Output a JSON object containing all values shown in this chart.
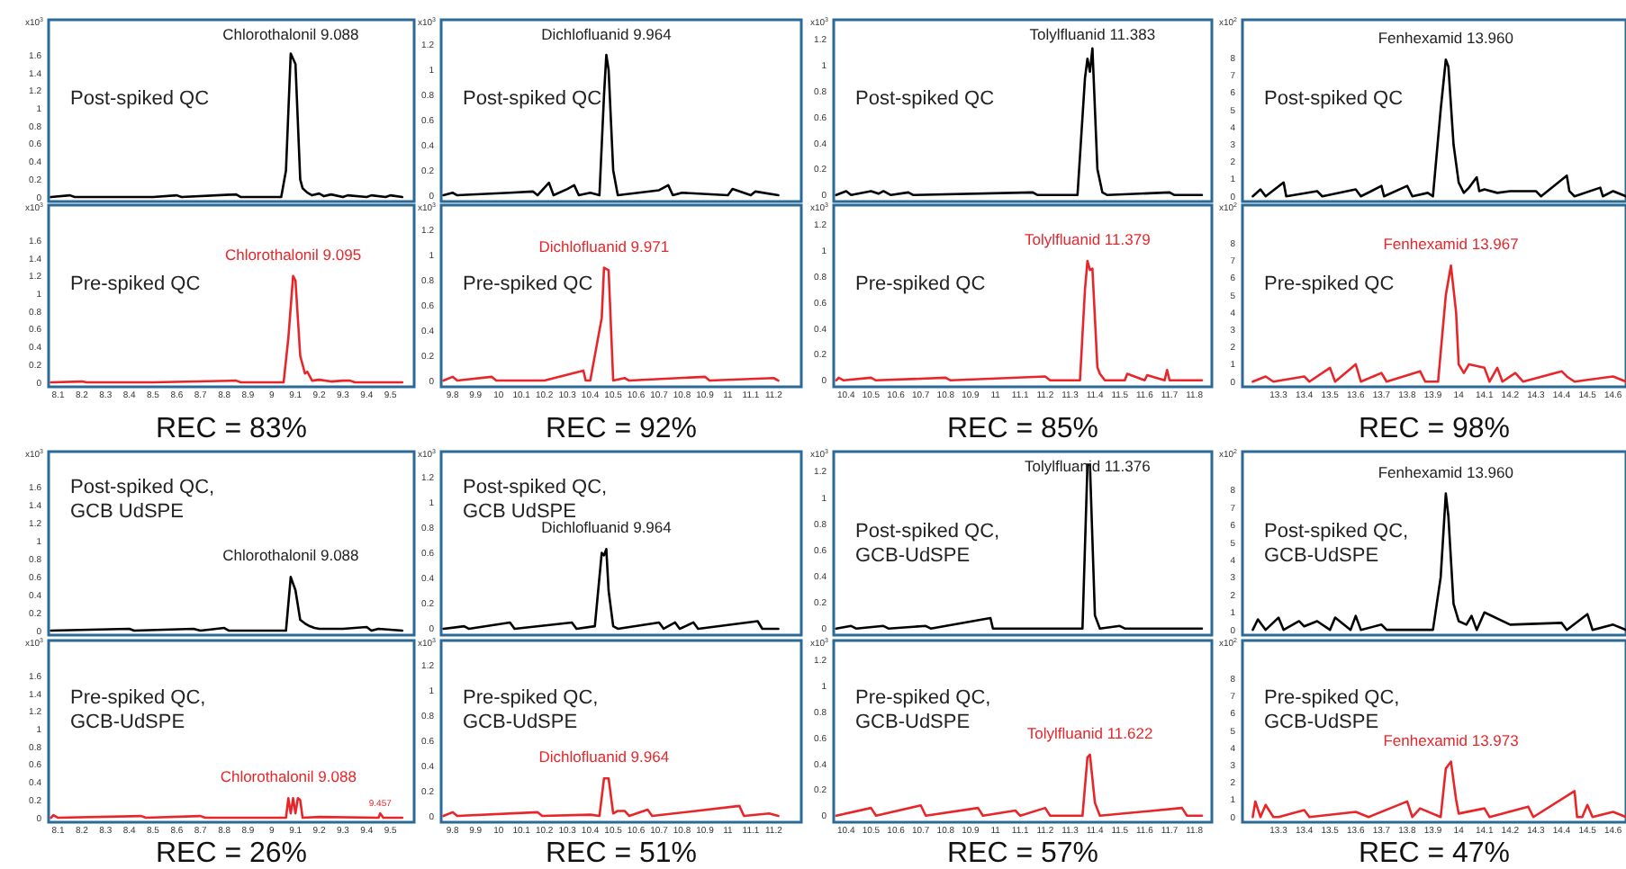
{
  "chart_data": [
    {
      "type": "line",
      "ylabel": "x10$^{3}$",
      "xlim": [
        8.06,
        9.6
      ],
      "xticks": [
        8.1,
        8.2,
        8.3,
        8.4,
        8.5,
        8.6,
        8.7,
        8.8,
        8.9,
        9,
        9.1,
        9.2,
        9.3,
        9.4,
        9.5
      ],
      "ylim": [
        -0.05,
        2.0
      ],
      "yticks": [
        0,
        0.2,
        0.4,
        0.6,
        0.8,
        1,
        1.2,
        1.4,
        1.6
      ],
      "tick_labels": "y",
      "series": [
        {
          "color": "#000000",
          "x": [
            8.07,
            8.15,
            8.17,
            8.5,
            8.6,
            8.62,
            8.85,
            8.87,
            9.04,
            9.06,
            9.08,
            9.1,
            9.12,
            9.13,
            9.15,
            9.17,
            9.2,
            9.22,
            9.25,
            9.3,
            9.32,
            9.4,
            9.42,
            9.48,
            9.5,
            9.55
          ],
          "values": [
            0,
            0.02,
            0,
            0,
            0.02,
            0,
            0.03,
            0,
            0,
            0.3,
            1.62,
            1.5,
            0.2,
            0.1,
            0.05,
            0.02,
            0.04,
            0.01,
            0.03,
            0,
            0.02,
            0,
            0.02,
            0,
            0.02,
            0
          ]
        }
      ],
      "annotations": [
        "Post-spiked QC",
        "Chlorothalonil 9.088"
      ]
    },
    {
      "type": "line",
      "ylabel": "x10$^{3}$",
      "xlim": [
        9.75,
        11.32
      ],
      "xticks": [
        9.8,
        9.9,
        10,
        10.1,
        10.2,
        10.3,
        10.4,
        10.5,
        10.6,
        10.7,
        10.8,
        10.9,
        11,
        11.1,
        11.2
      ],
      "ylim": [
        -0.05,
        1.4
      ],
      "yticks": [
        0,
        0.2,
        0.4,
        0.6,
        0.8,
        1,
        1.2
      ],
      "tick_labels": "y",
      "series": [
        {
          "color": "#000000",
          "x": [
            9.76,
            9.8,
            9.82,
            10.05,
            10.15,
            10.17,
            10.22,
            10.24,
            10.3,
            10.33,
            10.35,
            10.4,
            10.44,
            10.46,
            10.47,
            10.48,
            10.5,
            10.52,
            10.7,
            10.74,
            10.76,
            10.8,
            11.0,
            11.02,
            11.1,
            11.12,
            11.22
          ],
          "values": [
            0,
            0.02,
            0,
            0.02,
            0.03,
            0,
            0.1,
            0,
            0.05,
            0.08,
            0,
            0.02,
            0,
            0.8,
            1.12,
            1.0,
            0.2,
            0,
            0.04,
            0.08,
            0,
            0.02,
            0,
            0.05,
            0,
            0.03,
            0
          ]
        }
      ],
      "annotations": [
        "Post-spiked QC",
        "Dichlofluanid 9.964"
      ]
    },
    {
      "type": "line",
      "ylabel": "x10$^{3}$",
      "xlim": [
        10.35,
        11.87
      ],
      "xticks": [
        10.4,
        10.5,
        10.6,
        10.7,
        10.8,
        10.9,
        11,
        11.1,
        11.2,
        11.3,
        11.4,
        11.5,
        11.6,
        11.7,
        11.8
      ],
      "ylim": [
        -0.05,
        1.35
      ],
      "yticks": [
        0,
        0.2,
        0.4,
        0.6,
        0.8,
        1,
        1.2
      ],
      "tick_labels": "y",
      "series": [
        {
          "color": "#000000",
          "x": [
            10.36,
            10.4,
            10.42,
            10.5,
            10.53,
            10.55,
            10.58,
            10.65,
            10.67,
            11.15,
            11.17,
            11.33,
            11.36,
            11.37,
            11.38,
            11.39,
            11.41,
            11.43,
            11.45,
            11.7,
            11.72,
            11.83
          ],
          "values": [
            0,
            0.03,
            0,
            0.03,
            0.01,
            0.03,
            0,
            0.02,
            0,
            0.02,
            0,
            0,
            0.9,
            1.05,
            0.95,
            1.13,
            0.2,
            0.02,
            0,
            0.02,
            0,
            0
          ]
        }
      ],
      "annotations": [
        "Post-spiked QC",
        "Tolylfluanid 11.383"
      ]
    },
    {
      "type": "line",
      "ylabel": "x10$^{2}$",
      "xlim": [
        13.16,
        14.65
      ],
      "xticks": [
        13.3,
        13.4,
        13.5,
        13.6,
        13.7,
        13.8,
        13.9,
        14,
        14.1,
        14.2,
        14.3,
        14.4,
        14.5,
        14.6
      ],
      "ylim": [
        -0.3,
        10.2
      ],
      "yticks": [
        0,
        1,
        2,
        3,
        4,
        5,
        6,
        7,
        8
      ],
      "tick_labels": "y",
      "series": [
        {
          "color": "#000000",
          "x": [
            13.2,
            13.23,
            13.25,
            13.32,
            13.33,
            13.45,
            13.47,
            13.6,
            13.62,
            13.7,
            13.71,
            13.8,
            13.82,
            13.88,
            13.9,
            13.93,
            13.95,
            13.96,
            13.98,
            14.0,
            14.02,
            14.04,
            14.07,
            14.08,
            14.1,
            14.15,
            14.2,
            14.3,
            14.32,
            14.42,
            14.43,
            14.45,
            14.55,
            14.56,
            14.6,
            14.65
          ],
          "values": [
            0,
            0.4,
            0,
            0.8,
            0,
            0.3,
            0,
            0.4,
            0,
            0.6,
            0,
            0.6,
            0,
            0.2,
            0,
            5,
            7.9,
            7.5,
            3,
            0.8,
            0.2,
            0.5,
            1.1,
            0.3,
            0.4,
            0.2,
            0.3,
            0.3,
            0,
            1.2,
            0.3,
            0,
            0.5,
            0,
            0.3,
            0
          ]
        }
      ],
      "annotations": [
        "Post-spiked QC",
        "Fenhexamid 13.960"
      ]
    },
    {
      "type": "line",
      "ylabel": "x10$^{3}$",
      "xlim": [
        8.06,
        9.6
      ],
      "xticks": [
        8.1,
        8.2,
        8.3,
        8.4,
        8.5,
        8.6,
        8.7,
        8.8,
        8.9,
        9,
        9.1,
        9.2,
        9.3,
        9.4,
        9.5
      ],
      "ylim": [
        -0.05,
        2.0
      ],
      "yticks": [
        0,
        0.2,
        0.4,
        0.6,
        0.8,
        1,
        1.2,
        1.4,
        1.6
      ],
      "series": [
        {
          "color": "#e8262a",
          "x": [
            8.07,
            8.2,
            8.22,
            8.5,
            8.85,
            8.87,
            9.05,
            9.07,
            9.09,
            9.1,
            9.12,
            9.14,
            9.15,
            9.17,
            9.2,
            9.25,
            9.3,
            9.33,
            9.35,
            9.55
          ],
          "values": [
            0,
            0.01,
            0,
            0,
            0.02,
            0,
            0,
            0.5,
            1.2,
            1.15,
            0.3,
            0.1,
            0.12,
            0.02,
            0.03,
            0.01,
            0.02,
            0.02,
            0,
            0
          ]
        }
      ],
      "annotations": [
        "Pre-spiked QC",
        "REC = 83%",
        "Chlorothalonil 9.095"
      ]
    },
    {
      "type": "line",
      "ylabel": "x10$^{3}$",
      "xlim": [
        9.75,
        11.32
      ],
      "xticks": [
        9.8,
        9.9,
        10,
        10.1,
        10.2,
        10.3,
        10.4,
        10.5,
        10.6,
        10.7,
        10.8,
        10.9,
        11,
        11.1,
        11.2
      ],
      "ylim": [
        -0.05,
        1.4
      ],
      "yticks": [
        0,
        0.2,
        0.4,
        0.6,
        0.8,
        1,
        1.2
      ],
      "series": [
        {
          "color": "#e8262a",
          "x": [
            9.76,
            9.8,
            9.82,
            9.97,
            9.99,
            10.2,
            10.37,
            10.38,
            10.4,
            10.45,
            10.46,
            10.48,
            10.5,
            10.55,
            10.57,
            10.9,
            10.92,
            11.2,
            11.22
          ],
          "values": [
            0,
            0.03,
            0,
            0.03,
            0,
            0,
            0.08,
            0,
            0,
            0.5,
            0.9,
            0.88,
            0,
            0.02,
            0,
            0.03,
            0,
            0.02,
            0
          ]
        }
      ],
      "annotations": [
        "Pre-spiked QC",
        "REC = 92%",
        "Dichlofluanid 9.971"
      ]
    },
    {
      "type": "line",
      "ylabel": "x10$^{3}$",
      "xlim": [
        10.35,
        11.87
      ],
      "xticks": [
        10.4,
        10.5,
        10.6,
        10.7,
        10.8,
        10.9,
        11,
        11.1,
        11.2,
        11.3,
        11.4,
        11.5,
        11.6,
        11.7,
        11.8
      ],
      "ylim": [
        -0.05,
        1.35
      ],
      "yticks": [
        0,
        0.2,
        0.4,
        0.6,
        0.8,
        1,
        1.2
      ],
      "series": [
        {
          "color": "#e8262a",
          "x": [
            10.36,
            10.37,
            10.39,
            10.5,
            10.52,
            10.8,
            10.82,
            11.2,
            11.22,
            11.34,
            11.36,
            11.37,
            11.38,
            11.39,
            11.41,
            11.42,
            11.44,
            11.52,
            11.53,
            11.6,
            11.61,
            11.68,
            11.69,
            11.7,
            11.83
          ],
          "values": [
            0,
            0.02,
            0,
            0.02,
            0,
            0.02,
            0,
            0.03,
            0,
            0,
            0.7,
            0.92,
            0.85,
            0.86,
            0.1,
            0.05,
            0,
            0,
            0.05,
            0,
            0.04,
            0,
            0.08,
            0,
            0
          ]
        }
      ],
      "annotations": [
        "Pre-spiked QC",
        "REC = 85%",
        "Tolylfluanid 11.379"
      ]
    },
    {
      "type": "line",
      "ylabel": "x10$^{2}$",
      "xlim": [
        13.16,
        14.65
      ],
      "xticks": [
        13.3,
        13.4,
        13.5,
        13.6,
        13.7,
        13.8,
        13.9,
        14,
        14.1,
        14.2,
        14.3,
        14.4,
        14.5,
        14.6
      ],
      "ylim": [
        -0.3,
        10.2
      ],
      "yticks": [
        0,
        1,
        2,
        3,
        4,
        5,
        6,
        7,
        8
      ],
      "series": [
        {
          "color": "#e8262a",
          "x": [
            13.2,
            13.25,
            13.28,
            13.4,
            13.42,
            13.5,
            13.52,
            13.6,
            13.62,
            13.7,
            13.72,
            13.85,
            13.87,
            13.92,
            13.95,
            13.97,
            13.99,
            14.0,
            14.02,
            14.04,
            14.1,
            14.12,
            14.15,
            14.17,
            14.22,
            14.25,
            14.4,
            14.42,
            14.45,
            14.6,
            14.65
          ],
          "values": [
            0,
            0.3,
            0,
            0.3,
            0,
            0.8,
            0,
            1.0,
            0,
            0.5,
            0,
            0.6,
            0,
            0,
            5,
            6.7,
            4,
            1.0,
            0.5,
            1.0,
            0.8,
            0,
            0.8,
            0,
            0.5,
            0,
            0.6,
            0.3,
            0,
            0.3,
            0
          ]
        }
      ],
      "annotations": [
        "Pre-spiked QC",
        "REC = 98%",
        "Fenhexamid 13.967"
      ]
    },
    {
      "type": "line",
      "ylabel": "x10$^{3}$",
      "xlim": [
        8.06,
        9.6
      ],
      "xticks": [
        8.1,
        8.2,
        8.3,
        8.4,
        8.5,
        8.6,
        8.7,
        8.8,
        8.9,
        9,
        9.1,
        9.2,
        9.3,
        9.4,
        9.5
      ],
      "ylim": [
        -0.05,
        2.0
      ],
      "yticks": [
        0,
        0.2,
        0.4,
        0.6,
        0.8,
        1,
        1.2,
        1.4,
        1.6
      ],
      "tick_labels": "y",
      "series": [
        {
          "color": "#000000",
          "x": [
            8.07,
            8.4,
            8.42,
            8.67,
            8.7,
            8.8,
            8.82,
            9.06,
            9.08,
            9.1,
            9.12,
            9.14,
            9.16,
            9.18,
            9.2,
            9.25,
            9.3,
            9.4,
            9.42,
            9.45,
            9.55
          ],
          "values": [
            0,
            0.02,
            0,
            0.02,
            0,
            0.03,
            0,
            0,
            0.6,
            0.45,
            0.12,
            0.08,
            0.05,
            0.03,
            0.02,
            0.02,
            0.02,
            0.04,
            0,
            0.02,
            0
          ]
        }
      ],
      "annotations": [
        "Post-spiked QC,\nGCB UdSPE",
        "Chlorothalonil 9.088"
      ]
    },
    {
      "type": "line",
      "ylabel": "x10$^{3}$",
      "xlim": [
        9.75,
        11.32
      ],
      "xticks": [
        9.8,
        9.9,
        10,
        10.1,
        10.2,
        10.3,
        10.4,
        10.5,
        10.6,
        10.7,
        10.8,
        10.9,
        11,
        11.1,
        11.2
      ],
      "ylim": [
        -0.05,
        1.4
      ],
      "yticks": [
        0,
        0.2,
        0.4,
        0.6,
        0.8,
        1,
        1.2
      ],
      "tick_labels": "y",
      "series": [
        {
          "color": "#000000",
          "x": [
            9.76,
            9.85,
            9.87,
            10.05,
            10.07,
            10.32,
            10.34,
            10.42,
            10.45,
            10.46,
            10.47,
            10.48,
            10.5,
            10.52,
            10.7,
            10.72,
            10.77,
            10.79,
            10.85,
            10.87,
            11.13,
            11.15,
            11.22
          ],
          "values": [
            0,
            0.02,
            0,
            0.05,
            0,
            0.05,
            0,
            0.02,
            0.6,
            0.58,
            0.63,
            0.3,
            0.02,
            0,
            0.05,
            0,
            0.05,
            0,
            0.05,
            0,
            0.06,
            0,
            0
          ]
        }
      ],
      "annotations": [
        "Post-spiked QC,\nGCB UdSPE",
        "Dichlofluanid 9.964"
      ]
    },
    {
      "type": "line",
      "ylabel": "x10$^{3}$",
      "xlim": [
        10.35,
        11.87
      ],
      "xticks": [
        10.4,
        10.5,
        10.6,
        10.7,
        10.8,
        10.9,
        11,
        11.1,
        11.2,
        11.3,
        11.4,
        11.5,
        11.6,
        11.7,
        11.8
      ],
      "ylim": [
        -0.05,
        1.35
      ],
      "yticks": [
        0,
        0.2,
        0.4,
        0.6,
        0.8,
        1,
        1.2
      ],
      "tick_labels": "y",
      "series": [
        {
          "color": "#000000",
          "x": [
            10.36,
            10.42,
            10.44,
            10.55,
            10.57,
            10.72,
            10.74,
            10.98,
            10.99,
            11.01,
            11.35,
            11.37,
            11.38,
            11.4,
            11.42,
            11.5,
            11.52,
            11.83
          ],
          "values": [
            0,
            0.02,
            0,
            0.02,
            0,
            0.02,
            0,
            0.08,
            0,
            0,
            0,
            1.25,
            1.25,
            0.1,
            0,
            0.02,
            0,
            0
          ]
        }
      ],
      "annotations": [
        "Post-spiked QC,\nGCB-UdSPE",
        "Tolylfluanid 11.376"
      ]
    },
    {
      "type": "line",
      "ylabel": "x10$^{2}$",
      "xlim": [
        13.16,
        14.65
      ],
      "xticks": [
        13.3,
        13.4,
        13.5,
        13.6,
        13.7,
        13.8,
        13.9,
        14,
        14.1,
        14.2,
        14.3,
        14.4,
        14.5,
        14.6
      ],
      "ylim": [
        -0.3,
        10.2
      ],
      "yticks": [
        0,
        1,
        2,
        3,
        4,
        5,
        6,
        7,
        8
      ],
      "tick_labels": "y",
      "series": [
        {
          "color": "#000000",
          "x": [
            13.2,
            13.22,
            13.25,
            13.3,
            13.32,
            13.38,
            13.4,
            13.45,
            13.5,
            13.52,
            13.58,
            13.6,
            13.62,
            13.7,
            13.72,
            13.9,
            13.93,
            13.95,
            13.96,
            13.98,
            14.0,
            14.03,
            14.05,
            14.07,
            14.1,
            14.2,
            14.4,
            14.42,
            14.5,
            14.52,
            14.6,
            14.65
          ],
          "values": [
            0,
            0.6,
            0,
            0.7,
            0,
            0.5,
            0.2,
            0.5,
            0,
            0.7,
            0,
            0.8,
            0,
            0.3,
            0,
            0,
            3,
            7.8,
            6.5,
            1.5,
            0.5,
            0.3,
            0.8,
            0,
            1.0,
            0.3,
            0.4,
            0,
            0.9,
            0,
            0.3,
            0
          ]
        }
      ],
      "annotations": [
        "Post-spiked QC,\nGCB-UdSPE",
        "Fenhexamid 13.960"
      ]
    },
    {
      "type": "line",
      "ylabel": "x10$^{3}$",
      "xlim": [
        8.06,
        9.6
      ],
      "xticks": [
        8.1,
        8.2,
        8.3,
        8.4,
        8.5,
        8.6,
        8.7,
        8.8,
        8.9,
        9,
        9.1,
        9.2,
        9.3,
        9.4,
        9.5
      ],
      "ylim": [
        -0.05,
        2.0
      ],
      "yticks": [
        0,
        0.2,
        0.4,
        0.6,
        0.8,
        1,
        1.2,
        1.4,
        1.6
      ],
      "series": [
        {
          "color": "#e8262a",
          "x": [
            8.07,
            8.08,
            8.1,
            8.45,
            8.47,
            8.7,
            8.72,
            9.06,
            9.07,
            9.08,
            9.09,
            9.1,
            9.11,
            9.12,
            9.13,
            9.2,
            9.45,
            9.457,
            9.47,
            9.55
          ],
          "values": [
            0,
            0.03,
            0,
            0.02,
            0,
            0.02,
            0,
            0,
            0.22,
            0.05,
            0.22,
            0.05,
            0.22,
            0.2,
            0,
            0.01,
            0,
            0.05,
            0,
            0
          ]
        }
      ],
      "annotations": [
        "Pre-spiked QC,\nGCB-UdSPE",
        "REC = 26%",
        "Chlorothalonil 9.088",
        {
          "text": "9.457",
          "x": 9.457,
          "y": 0.05
        }
      ]
    },
    {
      "type": "line",
      "ylabel": "x10$^{3}$",
      "xlim": [
        9.75,
        11.32
      ],
      "xticks": [
        9.8,
        9.9,
        10,
        10.1,
        10.2,
        10.3,
        10.4,
        10.5,
        10.6,
        10.7,
        10.8,
        10.9,
        11,
        11.1,
        11.2
      ],
      "ylim": [
        -0.05,
        1.4
      ],
      "yticks": [
        0,
        0.2,
        0.4,
        0.6,
        0.8,
        1,
        1.2
      ],
      "series": [
        {
          "color": "#e8262a",
          "x": [
            9.76,
            9.8,
            9.82,
            10.17,
            10.19,
            10.4,
            10.44,
            10.46,
            10.48,
            10.5,
            10.52,
            10.55,
            10.57,
            10.65,
            10.67,
            11.05,
            11.07,
            11.18,
            11.22
          ],
          "values": [
            0,
            0.03,
            0,
            0.03,
            0,
            0.01,
            0,
            0.3,
            0.3,
            0.02,
            0.04,
            0.04,
            0,
            0.05,
            0,
            0.08,
            0,
            0.02,
            0
          ]
        }
      ],
      "annotations": [
        "Pre-spiked QC,\nGCB-UdSPE",
        "REC = 51%",
        "Dichlofluanid 9.964"
      ]
    },
    {
      "type": "line",
      "ylabel": "x10$^{3}$",
      "xlim": [
        10.35,
        11.87
      ],
      "xticks": [
        10.4,
        10.5,
        10.6,
        10.7,
        10.8,
        10.9,
        11,
        11.1,
        11.2,
        11.3,
        11.4,
        11.5,
        11.6,
        11.7,
        11.8
      ],
      "ylim": [
        -0.05,
        1.35
      ],
      "yticks": [
        0,
        0.2,
        0.4,
        0.6,
        0.8,
        1,
        1.2
      ],
      "series": [
        {
          "color": "#e8262a",
          "x": [
            10.36,
            10.5,
            10.52,
            10.7,
            10.72,
            10.93,
            10.95,
            11.08,
            11.1,
            11.2,
            11.22,
            11.35,
            11.37,
            11.38,
            11.4,
            11.42,
            11.75,
            11.77,
            11.83
          ],
          "values": [
            0,
            0.06,
            0,
            0.08,
            0,
            0.06,
            0,
            0.04,
            0,
            0.06,
            0,
            0,
            0.45,
            0.47,
            0.1,
            0,
            0.06,
            0,
            0
          ]
        }
      ],
      "annotations": [
        "Pre-spiked QC,\nGCB-UdSPE",
        "REC = 57%",
        "Tolylfluanid 11.622"
      ]
    },
    {
      "type": "line",
      "ylabel": "x10$^{2}$",
      "xlim": [
        13.16,
        14.65
      ],
      "xticks": [
        13.3,
        13.4,
        13.5,
        13.6,
        13.7,
        13.8,
        13.9,
        14,
        14.1,
        14.2,
        14.3,
        14.4,
        14.5,
        14.6
      ],
      "ylim": [
        -0.3,
        10.2
      ],
      "yticks": [
        0,
        1,
        2,
        3,
        4,
        5,
        6,
        7,
        8
      ],
      "series": [
        {
          "color": "#e8262a",
          "x": [
            13.2,
            13.21,
            13.23,
            13.25,
            13.28,
            13.3,
            13.4,
            13.42,
            13.6,
            13.65,
            13.8,
            13.82,
            13.85,
            13.93,
            13.95,
            13.96,
            13.97,
            13.99,
            14.0,
            14.1,
            14.12,
            14.27,
            14.29,
            14.45,
            14.46,
            14.48,
            14.5,
            14.52,
            14.6,
            14.65
          ],
          "values": [
            0,
            0.9,
            0,
            0.7,
            0,
            0,
            0.4,
            0,
            0.3,
            0,
            0.9,
            0,
            0.5,
            0,
            2.8,
            3,
            3.2,
            1,
            0.2,
            0.5,
            0,
            0.6,
            0,
            1.5,
            0,
            0,
            0.7,
            0,
            0.3,
            0
          ]
        }
      ],
      "annotations": [
        "Pre-spiked QC,\nGCB-UdSPE",
        "REC = 47%",
        "Fenhexamid 13.973"
      ]
    }
  ]
}
